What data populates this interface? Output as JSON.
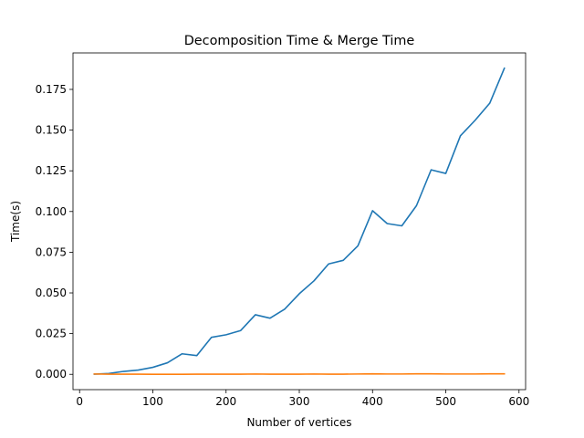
{
  "chart_data": {
    "type": "line",
    "title": "Decomposition Time & Merge Time",
    "xlabel": "Number of vertices",
    "ylabel": "Time(s)",
    "xlim": [
      -9,
      609
    ],
    "ylim": [
      -0.0094,
      0.1974
    ],
    "xticks": [
      0,
      100,
      200,
      300,
      400,
      500,
      600
    ],
    "yticks": [
      0.0,
      0.025,
      0.05,
      0.075,
      0.1,
      0.125,
      0.15,
      0.175
    ],
    "xtick_labels": [
      "0",
      "100",
      "200",
      "300",
      "400",
      "500",
      "600"
    ],
    "ytick_labels": [
      "0.000",
      "0.025",
      "0.050",
      "0.075",
      "0.100",
      "0.125",
      "0.150",
      "0.175"
    ],
    "grid": false,
    "x": [
      20,
      40,
      60,
      80,
      100,
      120,
      140,
      160,
      180,
      200,
      220,
      240,
      260,
      280,
      300,
      320,
      340,
      360,
      380,
      400,
      420,
      440,
      460,
      480,
      500,
      520,
      540,
      560,
      580
    ],
    "series": [
      {
        "color": "#1f77b4",
        "values": [
          0.0001,
          0.0005,
          0.0018,
          0.0026,
          0.0043,
          0.0071,
          0.0126,
          0.0115,
          0.0227,
          0.0243,
          0.0269,
          0.0366,
          0.0345,
          0.04,
          0.0495,
          0.0574,
          0.0678,
          0.07,
          0.0789,
          0.1005,
          0.0926,
          0.0912,
          0.1036,
          0.1256,
          0.1234,
          0.1465,
          0.156,
          0.1665,
          0.188
        ]
      },
      {
        "color": "#ff7f0e",
        "values": [
          0.0002,
          0.0001,
          0.0001,
          0.0001,
          0.0,
          0.0,
          0.0,
          0.0001,
          0.0001,
          0.0001,
          0.0001,
          0.0002,
          0.0001,
          0.0001,
          0.0001,
          0.0002,
          0.0001,
          0.0001,
          0.0002,
          0.0003,
          0.0002,
          0.0002,
          0.0003,
          0.0003,
          0.0002,
          0.0002,
          0.0002,
          0.0003,
          0.0003
        ]
      }
    ]
  }
}
